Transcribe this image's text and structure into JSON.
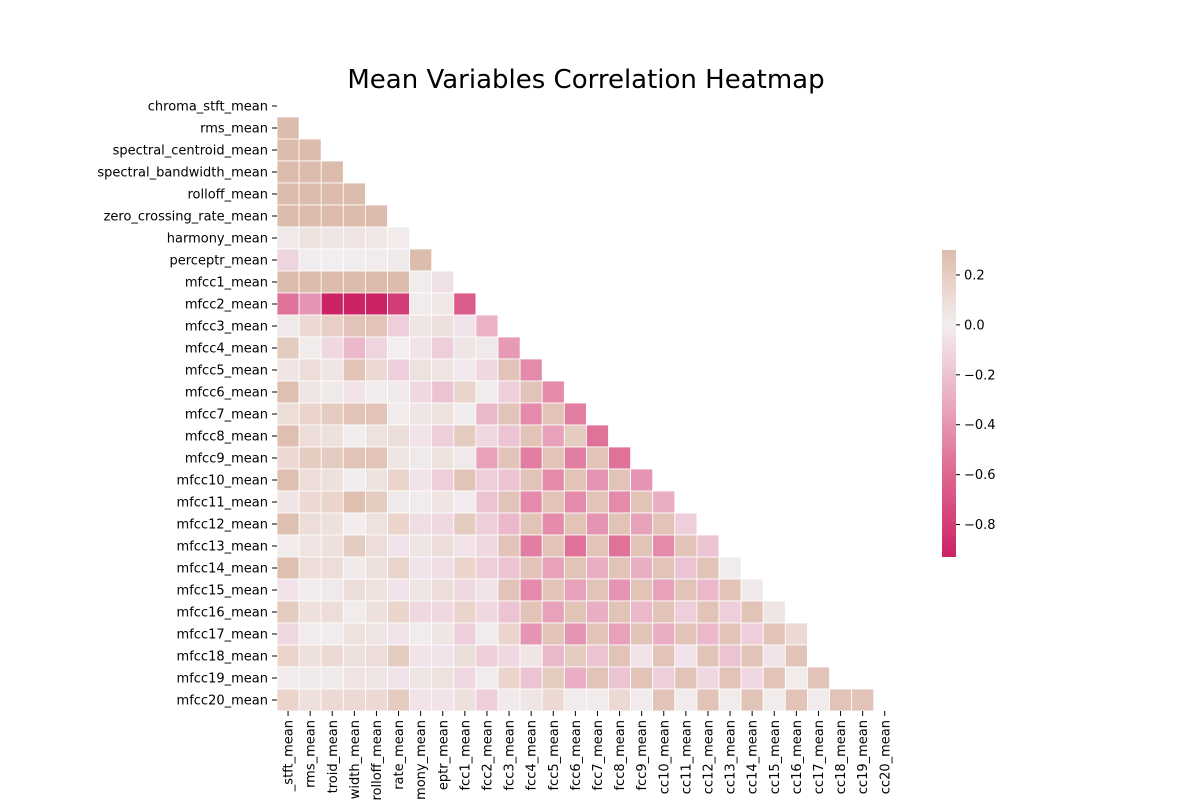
{
  "chart_data": {
    "type": "heatmap",
    "title": "Mean Variables Correlation Heatmap",
    "mask": "upper-triangle-including-diagonal",
    "row_labels": [
      "chroma_stft_mean",
      "rms_mean",
      "spectral_centroid_mean",
      "spectral_bandwidth_mean",
      "rolloff_mean",
      "zero_crossing_rate_mean",
      "harmony_mean",
      "perceptr_mean",
      "mfcc1_mean",
      "mfcc2_mean",
      "mfcc3_mean",
      "mfcc4_mean",
      "mfcc5_mean",
      "mfcc6_mean",
      "mfcc7_mean",
      "mfcc8_mean",
      "mfcc9_mean",
      "mfcc10_mean",
      "mfcc11_mean",
      "mfcc12_mean",
      "mfcc13_mean",
      "mfcc14_mean",
      "mfcc15_mean",
      "mfcc16_mean",
      "mfcc17_mean",
      "mfcc18_mean",
      "mfcc19_mean",
      "mfcc20_mean"
    ],
    "col_labels_visible": [
      "_stft_mean",
      "rms_mean",
      "troid_mean",
      "width_mean",
      "rolloff_mean",
      "rate_mean",
      "mony_mean",
      "eptr_mean",
      "fcc1_mean",
      "fcc2_mean",
      "fcc3_mean",
      "fcc4_mean",
      "fcc5_mean",
      "fcc6_mean",
      "fcc7_mean",
      "fcc8_mean",
      "fcc9_mean",
      "cc10_mean",
      "cc11_mean",
      "cc12_mean",
      "cc13_mean",
      "cc14_mean",
      "cc15_mean",
      "cc16_mean",
      "cc17_mean",
      "cc18_mean",
      "cc19_mean",
      "cc20_mean"
    ],
    "matrix": [
      [],
      [
        0.3
      ],
      [
        0.3,
        0.3
      ],
      [
        0.3,
        0.3,
        0.3
      ],
      [
        0.3,
        0.3,
        0.3,
        0.3
      ],
      [
        0.3,
        0.3,
        0.3,
        0.3,
        0.3
      ],
      [
        0.03,
        0.07,
        0.05,
        0.06,
        0.04,
        0.02
      ],
      [
        -0.12,
        0.01,
        0.0,
        0.01,
        0.02,
        0.03,
        0.3
      ],
      [
        0.3,
        0.3,
        0.3,
        0.3,
        0.3,
        0.3,
        0.02,
        -0.06
      ],
      [
        -0.55,
        -0.4,
        -0.93,
        -0.93,
        -0.93,
        -0.8,
        0.02,
        0.04,
        -0.65
      ],
      [
        0.03,
        0.12,
        0.18,
        0.25,
        0.25,
        -0.15,
        0.05,
        0.08,
        -0.05,
        -0.28
      ],
      [
        0.2,
        0.02,
        -0.1,
        -0.25,
        -0.12,
        0.0,
        -0.05,
        -0.15,
        0.05,
        0.03,
        -0.38
      ],
      [
        0.05,
        0.1,
        0.05,
        0.25,
        0.12,
        -0.15,
        0.07,
        0.06,
        -0.03,
        -0.1,
        0.25,
        -0.45
      ],
      [
        0.28,
        0.05,
        0.03,
        -0.05,
        0.02,
        0.03,
        -0.1,
        -0.2,
        0.15,
        0.02,
        -0.15,
        0.25,
        -0.45
      ],
      [
        0.1,
        0.15,
        0.2,
        0.25,
        0.25,
        0.02,
        0.05,
        0.07,
        0.01,
        -0.25,
        0.25,
        -0.45,
        0.25,
        -0.5
      ],
      [
        0.28,
        0.1,
        0.08,
        0.01,
        0.07,
        0.1,
        -0.05,
        -0.15,
        0.2,
        -0.1,
        -0.2,
        0.25,
        -0.35,
        0.2,
        -0.55
      ],
      [
        0.12,
        0.2,
        0.2,
        0.25,
        0.25,
        0.05,
        0.03,
        0.07,
        0.03,
        -0.35,
        0.25,
        -0.5,
        0.25,
        -0.5,
        0.25,
        -0.55
      ],
      [
        0.28,
        0.1,
        0.08,
        0.01,
        0.07,
        0.15,
        -0.05,
        -0.15,
        0.25,
        -0.15,
        -0.2,
        0.25,
        -0.45,
        0.25,
        -0.4,
        0.25,
        -0.4
      ],
      [
        0.05,
        0.12,
        0.15,
        0.28,
        0.2,
        0.03,
        0.02,
        0.06,
        -0.01,
        -0.2,
        0.25,
        -0.45,
        0.25,
        -0.45,
        0.25,
        -0.45,
        0.25,
        -0.3
      ],
      [
        0.28,
        0.1,
        0.08,
        -0.01,
        0.07,
        0.15,
        -0.08,
        -0.1,
        0.2,
        -0.15,
        -0.25,
        0.25,
        -0.45,
        0.25,
        -0.4,
        0.25,
        -0.35,
        0.25,
        -0.15
      ],
      [
        0.02,
        0.06,
        0.08,
        0.2,
        0.1,
        -0.05,
        0.05,
        0.1,
        -0.05,
        -0.1,
        0.25,
        -0.5,
        0.25,
        -0.55,
        0.25,
        -0.55,
        0.25,
        -0.45,
        0.25,
        -0.2
      ],
      [
        0.28,
        0.1,
        0.1,
        0.03,
        0.08,
        0.15,
        -0.05,
        -0.08,
        0.15,
        -0.15,
        -0.2,
        0.25,
        -0.35,
        0.25,
        -0.3,
        0.25,
        -0.3,
        0.25,
        -0.2,
        0.25,
        0.02
      ],
      [
        -0.05,
        0.02,
        0.03,
        0.1,
        0.07,
        -0.05,
        0.05,
        0.1,
        -0.1,
        -0.05,
        0.25,
        -0.45,
        0.25,
        -0.35,
        0.25,
        -0.4,
        0.25,
        -0.35,
        0.25,
        -0.25,
        0.25,
        0.03
      ],
      [
        0.2,
        0.08,
        0.1,
        0.02,
        0.08,
        0.15,
        -0.1,
        -0.1,
        0.15,
        -0.1,
        -0.2,
        0.25,
        -0.35,
        0.25,
        -0.3,
        0.25,
        -0.25,
        0.25,
        -0.15,
        0.25,
        -0.15,
        0.25,
        0.05
      ],
      [
        -0.1,
        0.02,
        0.02,
        0.07,
        0.05,
        -0.05,
        0.02,
        0.05,
        -0.15,
        0.02,
        0.15,
        -0.4,
        0.25,
        -0.4,
        0.25,
        -0.35,
        0.25,
        -0.3,
        0.25,
        -0.25,
        0.25,
        -0.15,
        0.25,
        0.12
      ],
      [
        0.15,
        0.08,
        0.12,
        0.08,
        0.1,
        0.2,
        -0.05,
        -0.05,
        0.1,
        -0.15,
        -0.1,
        0.05,
        -0.25,
        0.2,
        -0.2,
        0.25,
        -0.05,
        0.25,
        -0.05,
        0.25,
        -0.2,
        0.25,
        -0.05,
        0.25
      ],
      [
        0.02,
        0.03,
        0.03,
        0.06,
        0.05,
        -0.05,
        0.05,
        0.07,
        -0.1,
        0.02,
        0.15,
        -0.2,
        0.2,
        -0.3,
        0.25,
        -0.2,
        0.25,
        -0.15,
        0.25,
        -0.1,
        0.25,
        -0.1,
        0.25,
        0.02,
        0.25
      ],
      [
        0.15,
        0.08,
        0.12,
        0.12,
        0.12,
        0.2,
        -0.05,
        -0.05,
        0.08,
        -0.15,
        -0.02,
        0.05,
        0.12,
        0.02,
        0.02,
        0.12,
        0.02,
        0.25,
        0.02,
        0.25,
        0.02,
        0.25,
        0.02,
        0.25,
        0.02,
        0.25,
        0.25
      ]
    ],
    "colorbar": {
      "vmin": -0.93,
      "vmax": 0.3,
      "ticks": [
        0.2,
        0.0,
        -0.2,
        -0.4,
        -0.6,
        -0.8
      ],
      "tick_labels": [
        "0.2",
        "0.0",
        "−0.2",
        "−0.4",
        "−0.6",
        "−0.8"
      ],
      "stops": [
        {
          "v": -0.93,
          "color": "#cc2266"
        },
        {
          "v": -0.6,
          "color": "#de6690"
        },
        {
          "v": -0.3,
          "color": "#e9adc4"
        },
        {
          "v": 0.0,
          "color": "#f2eef0"
        },
        {
          "v": 0.15,
          "color": "#ead4cc"
        },
        {
          "v": 0.3,
          "color": "#dcbcac"
        }
      ]
    }
  }
}
